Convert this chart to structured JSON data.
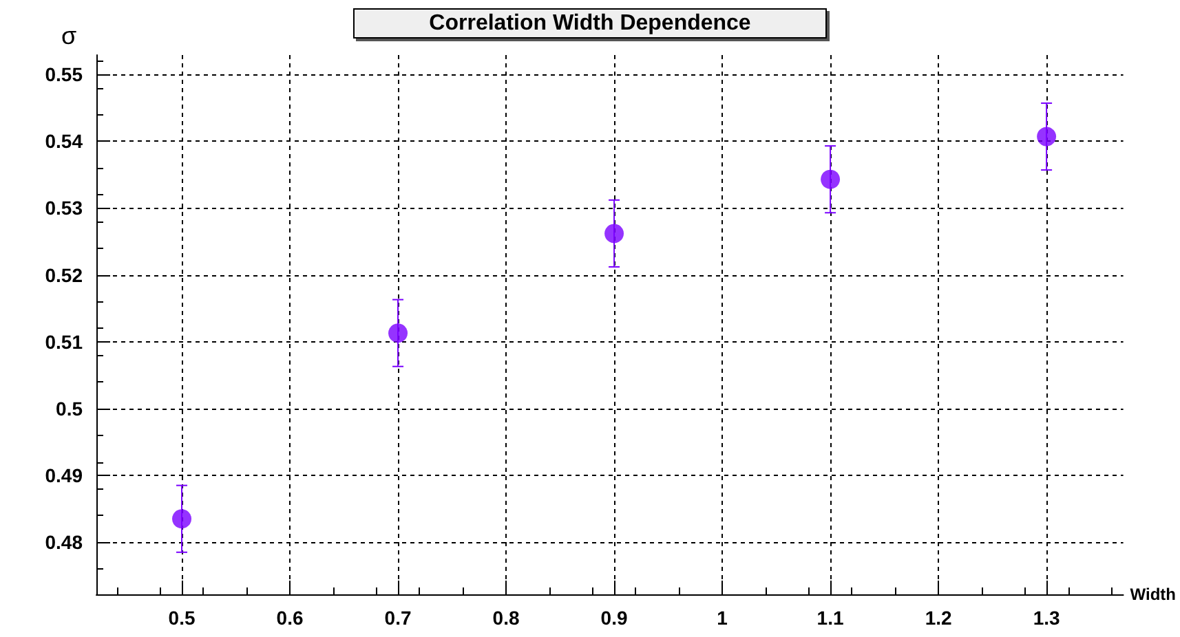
{
  "chart_data": {
    "type": "scatter",
    "title": "Correlation Width Dependence",
    "xlabel": "Width",
    "ylabel": "σ",
    "x": [
      0.5,
      0.7,
      0.9,
      1.1,
      1.3
    ],
    "series": [
      {
        "color": "#7a00ff",
        "values": [
          0.4835,
          0.5113,
          0.5262,
          0.5343,
          0.5407
        ],
        "errors": [
          0.005,
          0.005,
          0.005,
          0.005,
          0.005
        ]
      }
    ],
    "xlim": [
      0.421,
      1.371
    ],
    "xticks": [
      0.5,
      0.6,
      0.7,
      0.8,
      0.9,
      1,
      1.1,
      1.2,
      1.3
    ],
    "ylim": [
      0.4722,
      0.5529
    ],
    "yticks": [
      0.48,
      0.49,
      0.5,
      0.51,
      0.52,
      0.53,
      0.54,
      0.55
    ],
    "grid": true,
    "marker": "circle"
  }
}
